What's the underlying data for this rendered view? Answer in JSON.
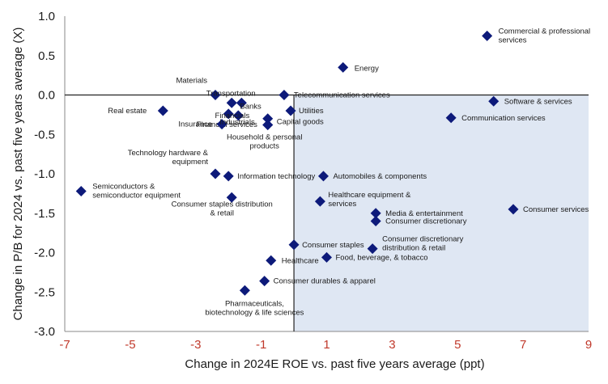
{
  "chart_data": {
    "type": "scatter",
    "title": "",
    "xlabel": "Change in 2024E ROE vs. past five years average (ppt)",
    "ylabel": "Change in P/B for 2024 vs. past five years average (X)",
    "xlim": [
      -7,
      9
    ],
    "ylim": [
      -3,
      1
    ],
    "xticks": [
      -7,
      -5,
      -3,
      -1,
      1,
      3,
      5,
      7,
      9
    ],
    "yticks": [
      1.0,
      0.5,
      0.0,
      -0.5,
      -1.0,
      -1.5,
      -2.0,
      -2.5,
      -3.0
    ],
    "xtick_labels": [
      "-7",
      "-5",
      "-3",
      "-1",
      "1",
      "3",
      "5",
      "7",
      "9"
    ],
    "ytick_labels": [
      "1.0",
      "0.5",
      "0.0",
      "-0.5",
      "-1.0",
      "-1.5",
      "-2.0",
      "-2.5",
      "-3.0"
    ],
    "grid": false,
    "marker_color": "#0d1a7a",
    "shade_color": "#dfe7f3",
    "shaded_quadrant": "x > 0, y < 0",
    "points": [
      {
        "label": [
          "Commercial & professional",
          "services"
        ],
        "x": 5.9,
        "y": 0.75
      },
      {
        "label": [
          "Energy"
        ],
        "x": 1.5,
        "y": 0.35
      },
      {
        "label": [
          "Materials"
        ],
        "x": -2.4,
        "y": 0.0
      },
      {
        "label": [
          "Transportation"
        ],
        "x": -1.9,
        "y": -0.1
      },
      {
        "label": [
          "Banks"
        ],
        "x": -1.6,
        "y": -0.1
      },
      {
        "label": [
          "Telecommunication services"
        ],
        "x": -0.3,
        "y": 0.0
      },
      {
        "label": [
          "Financial services"
        ],
        "x": -2.0,
        "y": -0.24
      },
      {
        "label": [
          "Real estate"
        ],
        "x": -4.0,
        "y": -0.2
      },
      {
        "label": [
          "Financials"
        ],
        "x": -1.7,
        "y": -0.26
      },
      {
        "label": [
          "Utilities"
        ],
        "x": -0.1,
        "y": -0.2
      },
      {
        "label": [
          "Insurance"
        ],
        "x": -2.2,
        "y": -0.37
      },
      {
        "label": [
          "Industrials"
        ],
        "x": -0.8,
        "y": -0.3
      },
      {
        "label": [
          "Capital goods"
        ],
        "x": -0.8,
        "y": -0.38
      },
      {
        "label": [
          "Household & personal",
          "products"
        ],
        "x": -0.8,
        "y": -0.38
      },
      {
        "label": [
          "Software & services"
        ],
        "x": 6.1,
        "y": -0.08
      },
      {
        "label": [
          "Communication services"
        ],
        "x": 4.8,
        "y": -0.29
      },
      {
        "label": [
          "Technology hardware &",
          "equipment"
        ],
        "x": -2.4,
        "y": -1.0
      },
      {
        "label": [
          "Information technology"
        ],
        "x": -2.0,
        "y": -1.03
      },
      {
        "label": [
          "Automobiles & components"
        ],
        "x": 0.9,
        "y": -1.03
      },
      {
        "label": [
          "Semiconductors &",
          "semiconductor equipment"
        ],
        "x": -6.5,
        "y": -1.22
      },
      {
        "label": [
          "Consumer staples distribution",
          "& retail"
        ],
        "x": -1.9,
        "y": -1.3
      },
      {
        "label": [
          "Healthcare equipment &",
          "services"
        ],
        "x": 0.8,
        "y": -1.35
      },
      {
        "label": [
          "Consumer services"
        ],
        "x": 6.7,
        "y": -1.45
      },
      {
        "label": [
          "Media & entertainment"
        ],
        "x": 2.5,
        "y": -1.5
      },
      {
        "label": [
          "Consumer discretionary"
        ],
        "x": 2.5,
        "y": -1.6
      },
      {
        "label": [
          "Consumer staples"
        ],
        "x": 0.0,
        "y": -1.9
      },
      {
        "label": [
          "Consumer discretionary",
          "distribution & retail"
        ],
        "x": 2.4,
        "y": -1.95
      },
      {
        "label": [
          "Healthcare"
        ],
        "x": -0.7,
        "y": -2.1
      },
      {
        "label": [
          "Food, beverage, & tobacco"
        ],
        "x": 1.0,
        "y": -2.06
      },
      {
        "label": [
          "Consumer durables & apparel"
        ],
        "x": -0.9,
        "y": -2.36
      },
      {
        "label": [
          "Pharmaceuticals,",
          "biotechnology & life sciences"
        ],
        "x": -1.5,
        "y": -2.48
      }
    ]
  }
}
